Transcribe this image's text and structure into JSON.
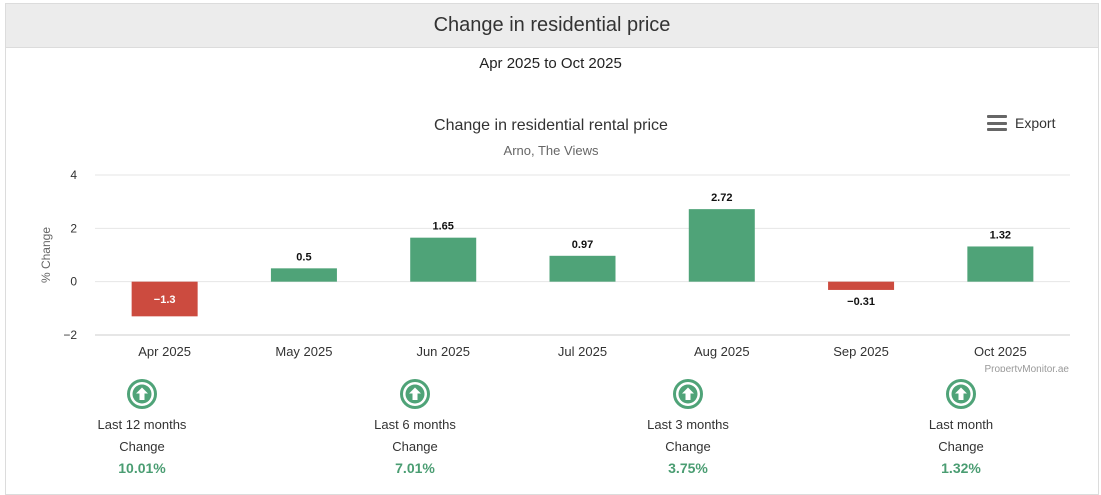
{
  "header": {
    "title": "Change in residential price"
  },
  "date_range": "Apr 2025 to Oct 2025",
  "export": {
    "label": "Export",
    "icon": "menu-icon"
  },
  "colors": {
    "positive": "#4fa378",
    "negative": "#cc4b3f",
    "stat_value": "#4a9d72"
  },
  "chart_data": {
    "type": "bar",
    "title": "Change in residential rental price",
    "subtitle": "Arno, The Views",
    "xlabel": "",
    "ylabel": "% Change",
    "ylim": [
      -2,
      4
    ],
    "yticks": [
      -2,
      0,
      2,
      4
    ],
    "ytick_labels": [
      "−2",
      "0",
      "2",
      "4"
    ],
    "categories": [
      "Apr 2025",
      "May 2025",
      "Jun 2025",
      "Jul 2025",
      "Aug 2025",
      "Sep 2025",
      "Oct 2025"
    ],
    "values": [
      -1.3,
      0.5,
      1.65,
      0.97,
      2.72,
      -0.31,
      1.32
    ],
    "value_labels": [
      "−1.3",
      "0.5",
      "1.65",
      "0.97",
      "2.72",
      "−0.31",
      "1.32"
    ],
    "grid": true,
    "credit": "PropertyMonitor.ae"
  },
  "stats": [
    {
      "period": "Last 12 months",
      "change_label": "Change",
      "value": "10.01%",
      "icon": "arrow-up-circle-icon"
    },
    {
      "period": "Last 6 months",
      "change_label": "Change",
      "value": "7.01%",
      "icon": "arrow-up-circle-icon"
    },
    {
      "period": "Last 3 months",
      "change_label": "Change",
      "value": "3.75%",
      "icon": "arrow-up-circle-icon"
    },
    {
      "period": "Last month",
      "change_label": "Change",
      "value": "1.32%",
      "icon": "arrow-up-circle-icon"
    }
  ]
}
